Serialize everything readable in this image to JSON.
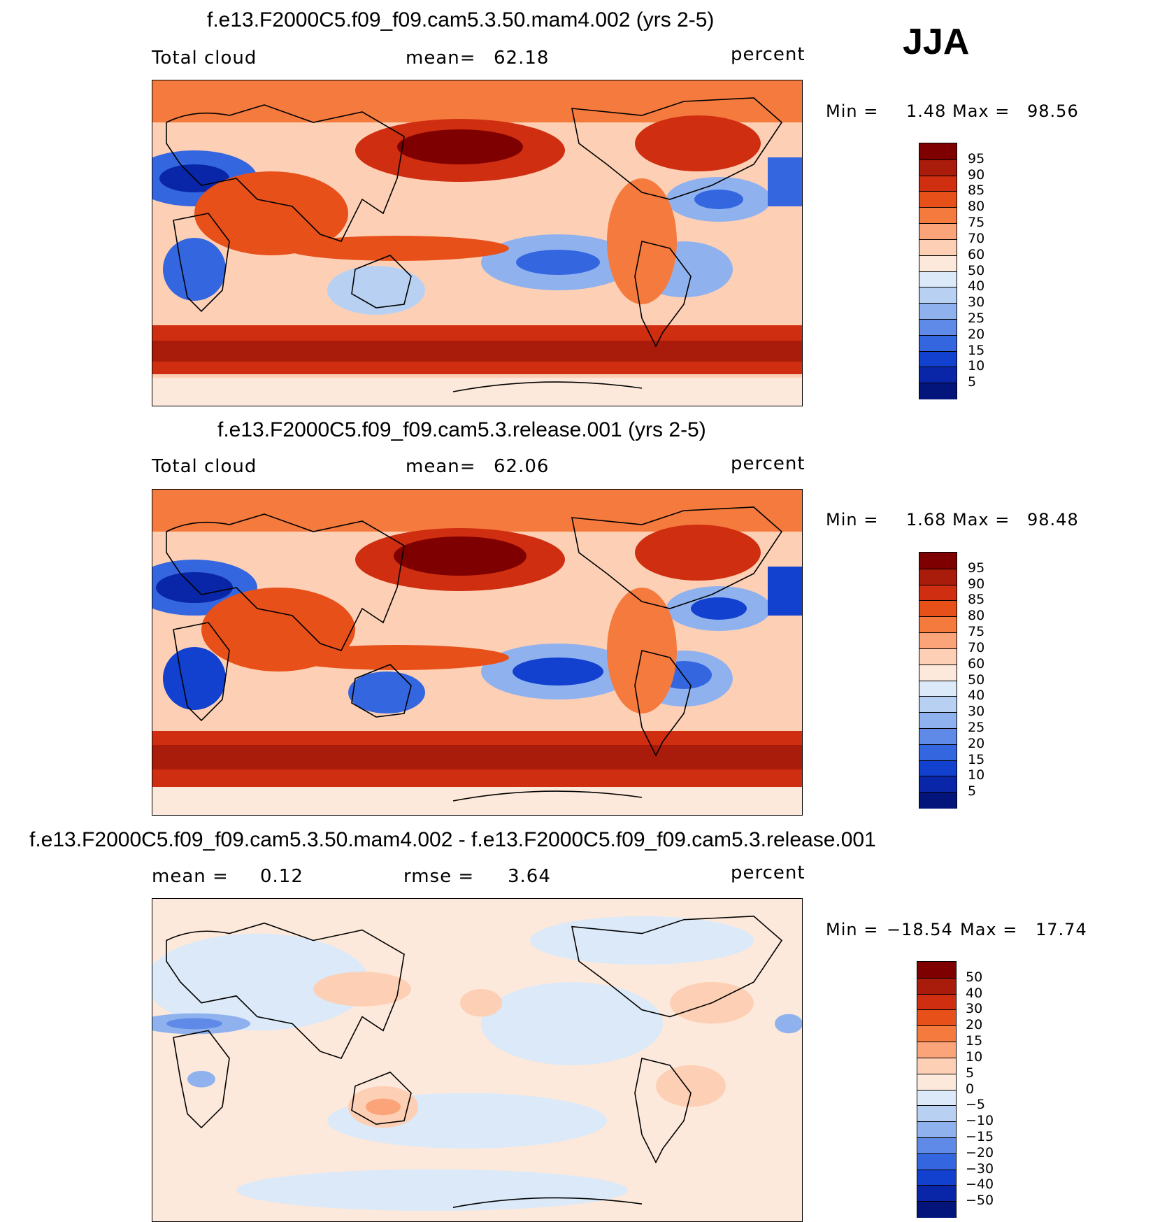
{
  "season": "JJA",
  "panels": [
    {
      "id": "top",
      "title": "f.e13.F2000C5.f09_f09.cam5.3.50.mam4.002 (yrs 2-5)",
      "left_label": "Total cloud",
      "center_label": "mean=",
      "center_value": "62.18",
      "units": "percent",
      "min_label": "Min =",
      "min_value": "1.48",
      "max_label": "Max =",
      "max_value": "98.56",
      "colorbar": {
        "labels": [
          "95",
          "90",
          "85",
          "80",
          "75",
          "70",
          "60",
          "50",
          "40",
          "30",
          "25",
          "20",
          "15",
          "10",
          "5"
        ],
        "colors": [
          "#7f0000",
          "#a91b0a",
          "#cf2e10",
          "#e8501a",
          "#f57a3d",
          "#fba47a",
          "#fdd0b6",
          "#fde9db",
          "#dbe9f8",
          "#b8d1f3",
          "#8fb2ef",
          "#5f8ae8",
          "#3466e0",
          "#1240cf",
          "#0a26a8",
          "#03157a"
        ]
      }
    },
    {
      "id": "middle",
      "title": "f.e13.F2000C5.f09_f09.cam5.3.release.001 (yrs 2-5)",
      "left_label": "Total cloud",
      "center_label": "mean=",
      "center_value": "62.06",
      "units": "percent",
      "min_label": "Min =",
      "min_value": "1.68",
      "max_label": "Max =",
      "max_value": "98.48",
      "colorbar": {
        "labels": [
          "95",
          "90",
          "85",
          "80",
          "75",
          "70",
          "60",
          "50",
          "40",
          "30",
          "25",
          "20",
          "15",
          "10",
          "5"
        ],
        "colors": [
          "#7f0000",
          "#a91b0a",
          "#cf2e10",
          "#e8501a",
          "#f57a3d",
          "#fba47a",
          "#fdd0b6",
          "#fde9db",
          "#dbe9f8",
          "#b8d1f3",
          "#8fb2ef",
          "#5f8ae8",
          "#3466e0",
          "#1240cf",
          "#0a26a8",
          "#03157a"
        ]
      }
    },
    {
      "id": "bottom",
      "title": "f.e13.F2000C5.f09_f09.cam5.3.50.mam4.002 - f.e13.F2000C5.f09_f09.cam5.3.release.001",
      "left_label": "mean =",
      "left_value": "0.12",
      "center_label": "rmse =",
      "center_value": "3.64",
      "units": "percent",
      "min_label": "Min =",
      "min_value": "−18.54",
      "max_label": "Max =",
      "max_value": "17.74",
      "colorbar": {
        "labels": [
          "50",
          "40",
          "30",
          "20",
          "15",
          "10",
          "5",
          "0",
          "−5",
          "−10",
          "−15",
          "−20",
          "−30",
          "−40",
          "−50"
        ],
        "colors": [
          "#7f0000",
          "#a91b0a",
          "#cf2e10",
          "#e8501a",
          "#f57a3d",
          "#fba47a",
          "#fdd0b6",
          "#fde9db",
          "#dbe9f8",
          "#b8d1f3",
          "#8fb2ef",
          "#5f8ae8",
          "#3466e0",
          "#1240cf",
          "#0a26a8",
          "#03157a"
        ]
      }
    }
  ]
}
